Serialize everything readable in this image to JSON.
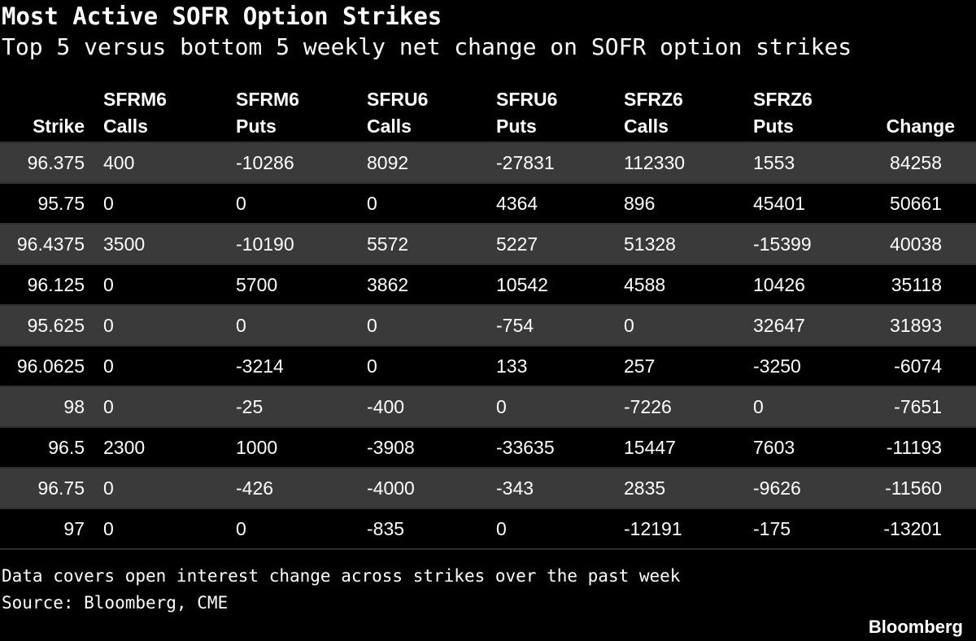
{
  "title": "Most Active SOFR Option Strikes",
  "subtitle": "Top 5 versus bottom 5 weekly net change on SOFR option strikes",
  "columns": [
    {
      "line1": "",
      "line2": "Strike"
    },
    {
      "line1": "SFRM6",
      "line2": "Calls"
    },
    {
      "line1": "SFRM6",
      "line2": "Puts"
    },
    {
      "line1": "SFRU6",
      "line2": "Calls"
    },
    {
      "line1": "SFRU6",
      "line2": "Puts"
    },
    {
      "line1": "SFRZ6",
      "line2": "Calls"
    },
    {
      "line1": "SFRZ6",
      "line2": "Puts"
    },
    {
      "line1": "",
      "line2": "Change"
    }
  ],
  "chart_data": {
    "type": "table",
    "title": "Most Active SOFR Option Strikes",
    "subtitle": "Top 5 versus bottom 5 weekly net change on SOFR option strikes",
    "columns": [
      "Strike",
      "SFRM6 Calls",
      "SFRM6 Puts",
      "SFRU6 Calls",
      "SFRU6 Puts",
      "SFRZ6 Calls",
      "SFRZ6 Puts",
      "Change"
    ],
    "rows": [
      [
        "96.375",
        "400",
        "-10286",
        "8092",
        "-27831",
        "112330",
        "1553",
        "84258"
      ],
      [
        "95.75",
        "0",
        "0",
        "0",
        "4364",
        "896",
        "45401",
        "50661"
      ],
      [
        "96.4375",
        "3500",
        "-10190",
        "5572",
        "5227",
        "51328",
        "-15399",
        "40038"
      ],
      [
        "96.125",
        "0",
        "5700",
        "3862",
        "10542",
        "4588",
        "10426",
        "35118"
      ],
      [
        "95.625",
        "0",
        "0",
        "0",
        "-754",
        "0",
        "32647",
        "31893"
      ],
      [
        "96.0625",
        "0",
        "-3214",
        "0",
        "133",
        "257",
        "-3250",
        "-6074"
      ],
      [
        "98",
        "0",
        "-25",
        "-400",
        "0",
        "-7226",
        "0",
        "-7651"
      ],
      [
        "96.5",
        "2300",
        "1000",
        "-3908",
        "-33635",
        "15447",
        "7603",
        "-11193"
      ],
      [
        "96.75",
        "0",
        "-426",
        "-4000",
        "-343",
        "2835",
        "-9626",
        "-11560"
      ],
      [
        "97",
        "0",
        "0",
        "-835",
        "0",
        "-12191",
        "-175",
        "-13201"
      ]
    ]
  },
  "footnotes": [
    "Data covers open interest change across strikes over the past week",
    "Source: Bloomberg, CME"
  ],
  "brand": "Bloomberg",
  "colors": {
    "background": "#000000",
    "text": "#ffffff",
    "row_shade": "#3a3a3a",
    "divider": "#2e2e2e"
  }
}
